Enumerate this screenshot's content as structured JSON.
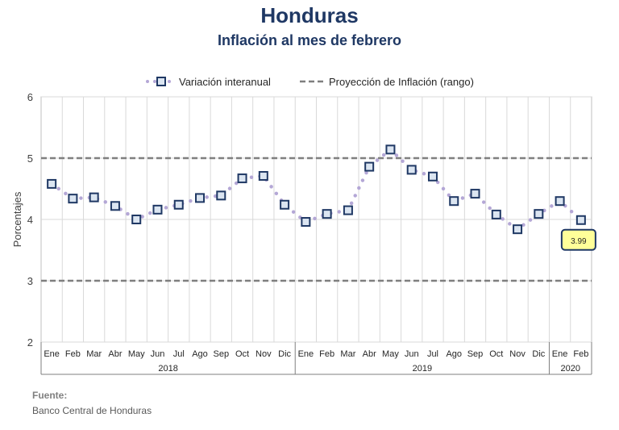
{
  "title": "Honduras",
  "subtitle": "Inflación al mes de febrero",
  "source": {
    "label": "Fuente:",
    "text": "Banco Central de Honduras"
  },
  "colors": {
    "line": "#b4a7d6",
    "marker_border": "#1f3864",
    "marker_fill": "#dbe5f1",
    "projection": "#7f7f7f",
    "grid": "#d9d9d9",
    "callout_fill": "#ffff99",
    "callout_border": "#1f3864"
  },
  "chart_data": {
    "type": "line",
    "ylabel": "Porcentajes",
    "xlabel": "",
    "ylim": [
      2,
      6
    ],
    "yticks": [
      2,
      3,
      4,
      5,
      6
    ],
    "grid": true,
    "legend_position": "top",
    "months": [
      "Ene",
      "Feb",
      "Mar",
      "Abr",
      "May",
      "Jun",
      "Jul",
      "Ago",
      "Sep",
      "Oct",
      "Nov",
      "Dic",
      "Ene",
      "Feb",
      "Mar",
      "Abr",
      "May",
      "Jun",
      "Jul",
      "Ago",
      "Sep",
      "Oct",
      "Nov",
      "Dic",
      "Ene",
      "Feb"
    ],
    "years": [
      {
        "label": "2018",
        "count": 12
      },
      {
        "label": "2019",
        "count": 12
      },
      {
        "label": "2020",
        "count": 2
      }
    ],
    "series": [
      {
        "name": "Variación interanual",
        "values": [
          4.58,
          4.34,
          4.36,
          4.22,
          4.0,
          4.16,
          4.24,
          4.35,
          4.39,
          4.67,
          4.71,
          4.24,
          3.96,
          4.09,
          4.15,
          4.86,
          5.14,
          4.81,
          4.7,
          4.3,
          4.42,
          4.08,
          3.84,
          4.09,
          4.3,
          3.99
        ]
      },
      {
        "name": "Proyección de Inflación (rango)",
        "values": [
          3,
          5
        ]
      }
    ],
    "callout": {
      "label": "3.99",
      "index": 25
    }
  }
}
